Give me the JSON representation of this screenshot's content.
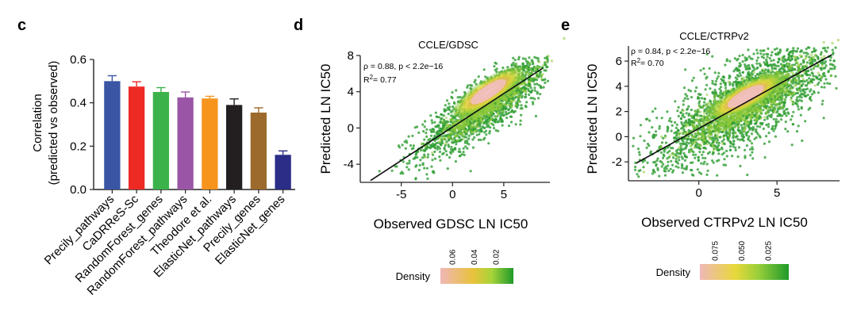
{
  "colors": {
    "axis": "#222222",
    "bar_palette": [
      "#3a55a4",
      "#ee2a24",
      "#3cb24a",
      "#9b55a6",
      "#f7941d",
      "#231f20",
      "#9b6a2c",
      "#2b2d86"
    ],
    "density_low": "#1f9a2a",
    "density_mid": "#e8e02a",
    "density_high": "#efb7b7",
    "fit_line": "#111111"
  },
  "chart_data": [
    {
      "panel": "c",
      "type": "bar",
      "title": "",
      "ylabel_line1": "Correlation",
      "ylabel_line2": "(predicted vs observed)",
      "xlabel": "",
      "categories": [
        "Precily_pathways",
        "CaDRReS-Sc",
        "RandomForest_genes",
        "RandomForest_pathways",
        "Theodore et al.",
        "ElasticNet_pathways",
        "Precily_genes",
        "ElasticNet_genes"
      ],
      "values": [
        0.5,
        0.475,
        0.45,
        0.425,
        0.42,
        0.39,
        0.355,
        0.16
      ],
      "errors": [
        0.025,
        0.022,
        0.02,
        0.025,
        0.01,
        0.028,
        0.022,
        0.018
      ],
      "ylim": [
        0,
        0.6
      ],
      "yticks": [
        0.0,
        0.2,
        0.4,
        0.6
      ],
      "ytick_labels": [
        "0.0",
        "0.2",
        "0.4",
        "0.6"
      ]
    },
    {
      "panel": "d",
      "type": "scatter",
      "title": "CCLE/GDSC",
      "xlabel": "Observed GDSC LN IC50",
      "ylabel": "Predicted LN IC50",
      "xlim": [
        -9,
        9.5
      ],
      "ylim": [
        -6,
        8
      ],
      "xticks": [
        -5,
        0,
        5
      ],
      "xtick_labels": [
        "-5",
        "0",
        "5"
      ],
      "yticks": [
        -4,
        0,
        4,
        8
      ],
      "ytick_labels": [
        "-4",
        "0",
        "4",
        "8"
      ],
      "annotation_line1": "ρ = 0.88, p < 2.2e−16",
      "annotation_r2_prefix": "R",
      "annotation_r2_sup": "2",
      "annotation_r2_value": "= 0.77",
      "fit_line": {
        "x": [
          -8,
          8.8
        ],
        "y": [
          -5.8,
          6.6
        ]
      },
      "density_center": [
        3.5,
        4.0
      ],
      "colorbar_label": "Density",
      "colorbar_ticks": [
        "0.06",
        "0.04",
        "0.02"
      ]
    },
    {
      "panel": "e",
      "type": "scatter",
      "title": "CCLE/CTRPv2",
      "xlabel": "Observed CTRPv2 LN IC50",
      "ylabel": "Predicted LN IC50",
      "xlim": [
        -4.5,
        9
      ],
      "ylim": [
        -3.5,
        7.2
      ],
      "xticks": [
        0,
        5
      ],
      "xtick_labels": [
        "0",
        "5"
      ],
      "yticks": [
        -2,
        0,
        2,
        4,
        6
      ],
      "ytick_labels": [
        "-2",
        "0",
        "2",
        "4",
        "6"
      ],
      "annotation_line1": "ρ = 0.84, p < 2.2e−16",
      "annotation_r2_prefix": "R",
      "annotation_r2_sup": "2",
      "annotation_r2_value": "= 0.70",
      "fit_line": {
        "x": [
          -4.0,
          8.5
        ],
        "y": [
          -2.1,
          6.5
        ]
      },
      "density_center": [
        3.0,
        3.2
      ],
      "colorbar_label": "Density",
      "colorbar_ticks": [
        "0.075",
        "0.050",
        "0.025"
      ]
    }
  ],
  "panel_letters": {
    "c": "c",
    "d": "d",
    "e": "e"
  }
}
